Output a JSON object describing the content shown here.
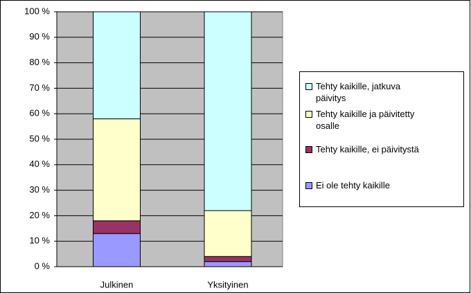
{
  "chart_data": {
    "type": "stacked_bar",
    "categories": [
      "Julkinen",
      "Yksityinen"
    ],
    "series": [
      {
        "name": "Ei ole tehty kaikille",
        "color": "#9999ff",
        "values": [
          13,
          2
        ]
      },
      {
        "name": "Tehty kaikille, ei päivitystä",
        "color": "#993366",
        "values": [
          5,
          2
        ]
      },
      {
        "name": "Tehty kaikille ja päivitetty osalle",
        "color": "#ffffcc",
        "values": [
          40,
          18
        ]
      },
      {
        "name": "Tehty kaikille, jatkuva päivitys",
        "color": "#ccffff",
        "values": [
          42,
          78
        ]
      }
    ],
    "ylim": [
      0,
      100
    ],
    "yticks": [
      {
        "value": 0,
        "label": "0 %"
      },
      {
        "value": 10,
        "label": "10 %"
      },
      {
        "value": 20,
        "label": "20 %"
      },
      {
        "value": 30,
        "label": "30 %"
      },
      {
        "value": 40,
        "label": "40 %"
      },
      {
        "value": 50,
        "label": "50 %"
      },
      {
        "value": 60,
        "label": "60 %"
      },
      {
        "value": 70,
        "label": "70 %"
      },
      {
        "value": 80,
        "label": "80 %"
      },
      {
        "value": 90,
        "label": "90 %"
      },
      {
        "value": 100,
        "label": "100 %"
      }
    ],
    "grid": true,
    "legend": "right",
    "plot_background": "#c0c0c0"
  }
}
